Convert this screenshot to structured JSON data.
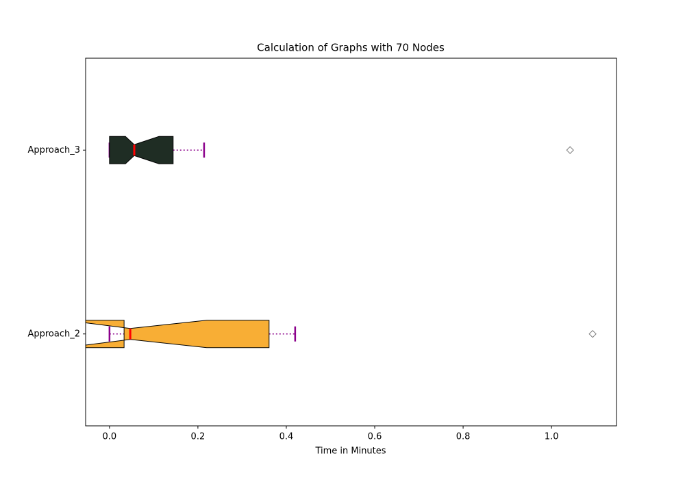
{
  "chart_data": {
    "type": "boxplot",
    "orientation": "horizontal",
    "notch": true,
    "title": "Calculation of Graphs with 70 Nodes",
    "xlabel": "Time in Minutes",
    "categories": [
      "Approach_2",
      "Approach_3"
    ],
    "series": [
      {
        "name": "Approach_2",
        "color": "#f8ae35",
        "whislo": 0.0,
        "q1": 0.033,
        "notch_lo": -0.1,
        "median": 0.047,
        "notch_hi": 0.22,
        "q3": 0.361,
        "whishi": 0.42,
        "fliers": [
          1.093
        ]
      },
      {
        "name": "Approach_3",
        "color": "#1f2d24",
        "whislo": 0.0,
        "q1": 0.0,
        "notch_lo": 0.036,
        "median": 0.056,
        "notch_hi": 0.112,
        "q3": 0.144,
        "whishi": 0.214,
        "fliers": [
          1.042
        ]
      }
    ],
    "whisker_color": "#8b008b",
    "median_color": "#ff0000",
    "flier_color": "#808080",
    "xlim": [
      -0.054,
      1.147
    ],
    "xticks": [
      {
        "value": 0,
        "label": "0.0"
      },
      0.2,
      0.4,
      0.6,
      0.8,
      {
        "value": 1,
        "label": "1.0"
      }
    ]
  }
}
